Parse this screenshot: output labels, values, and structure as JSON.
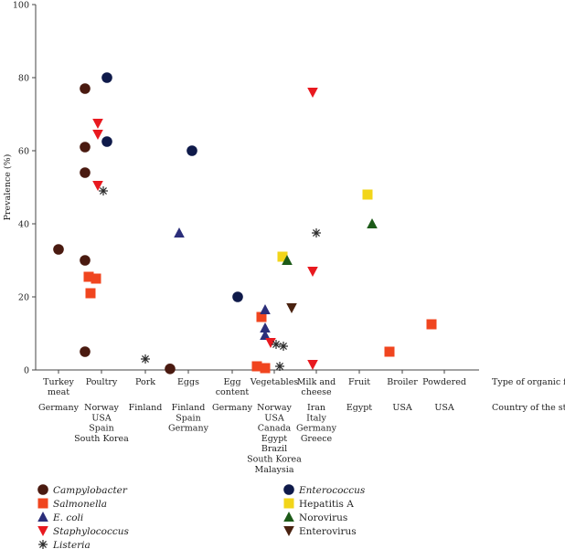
{
  "chart_data": {
    "type": "scatter",
    "title": "",
    "xlabel": "",
    "ylabel": "Prevalence (%)",
    "ylim": [
      0,
      100
    ],
    "yticks": [
      "0",
      "20",
      "40",
      "60",
      "80",
      "100"
    ],
    "row_labels": [
      "Type of organic food",
      "Country of the study"
    ],
    "categories": [
      {
        "name": [
          "Turkey",
          "meat"
        ],
        "countries": [
          "Germany"
        ]
      },
      {
        "name": [
          "Poultry"
        ],
        "countries": [
          "Norway",
          "USA",
          "Spain",
          "South Korea"
        ]
      },
      {
        "name": [
          "Pork"
        ],
        "countries": [
          "Finland"
        ]
      },
      {
        "name": [
          "Eggs"
        ],
        "countries": [
          "Finland",
          "Spain",
          "Germany"
        ]
      },
      {
        "name": [
          "Egg",
          "content"
        ],
        "countries": [
          "Germany"
        ]
      },
      {
        "name": [
          "Vegetables"
        ],
        "countries": [
          "Norway",
          "USA",
          "Canada",
          "Egypt",
          "Brazil",
          "South Korea",
          "Malaysia"
        ]
      },
      {
        "name": [
          "Milk and",
          "cheese"
        ],
        "countries": [
          "Iran",
          "Italy",
          "Germany",
          "Greece"
        ]
      },
      {
        "name": [
          "Fruit"
        ],
        "countries": [
          "Egypt"
        ]
      },
      {
        "name": [
          "Broiler"
        ],
        "countries": [
          "USA"
        ]
      },
      {
        "name": [
          "Powdered"
        ],
        "countries": [
          "USA"
        ]
      }
    ],
    "series": [
      {
        "name": "Campylobacter",
        "marker": "circle",
        "color": "#4a1a10",
        "italic": true,
        "points": [
          [
            0,
            33
          ],
          [
            1,
            77
          ],
          [
            1,
            61
          ],
          [
            1,
            54
          ],
          [
            1,
            30
          ],
          [
            1,
            5
          ],
          [
            3,
            0.3
          ]
        ]
      },
      {
        "name": "Salmonella",
        "marker": "square",
        "color": "#f0451f",
        "italic": true,
        "points": [
          [
            1,
            25.5
          ],
          [
            1,
            25
          ],
          [
            1,
            21
          ],
          [
            5,
            14.5
          ],
          [
            5,
            1
          ],
          [
            5,
            0.5
          ],
          [
            8,
            5
          ],
          [
            9,
            12.5
          ]
        ]
      },
      {
        "name": "E. coli",
        "marker": "triangle-up",
        "color": "#2b2e7a",
        "italic": true,
        "points": [
          [
            3,
            37.5
          ],
          [
            5,
            16.5
          ],
          [
            5,
            11.5
          ],
          [
            5,
            9.5
          ]
        ]
      },
      {
        "name": "Staphylococcus",
        "marker": "triangle-down",
        "color": "#e8191f",
        "italic": true,
        "points": [
          [
            1,
            67.5
          ],
          [
            1,
            64.5
          ],
          [
            1,
            50.5
          ],
          [
            5,
            7.5
          ],
          [
            6,
            76
          ],
          [
            6,
            27
          ],
          [
            6,
            1.5
          ]
        ]
      },
      {
        "name": "Listeria",
        "marker": "asterisk",
        "color": "#2a2a2a",
        "italic": true,
        "points": [
          [
            1,
            49
          ],
          [
            2,
            3
          ],
          [
            5,
            7
          ],
          [
            5,
            6.5
          ],
          [
            5,
            1
          ],
          [
            6,
            37.5
          ]
        ]
      },
      {
        "name": "Enterococcus",
        "marker": "circle",
        "color": "#0f1a4a",
        "italic": true,
        "points": [
          [
            1,
            80
          ],
          [
            1,
            62.5
          ],
          [
            3,
            60
          ],
          [
            4,
            20
          ]
        ]
      },
      {
        "name": "Hepatitis A",
        "marker": "square",
        "color": "#f2d51a",
        "italic": false,
        "points": [
          [
            5,
            31
          ],
          [
            7,
            48
          ]
        ]
      },
      {
        "name": "Norovirus",
        "marker": "triangle-up",
        "color": "#1c5a18",
        "italic": false,
        "points": [
          [
            5,
            30
          ],
          [
            7,
            40
          ]
        ]
      },
      {
        "name": "Enterovirus",
        "marker": "triangle-down",
        "color": "#4a2210",
        "italic": false,
        "points": [
          [
            5,
            17
          ]
        ]
      }
    ]
  }
}
